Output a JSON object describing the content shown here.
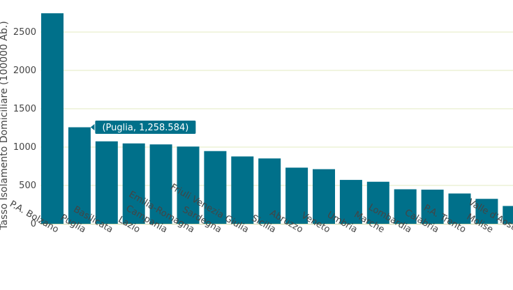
{
  "chart_data": {
    "type": "bar",
    "ylabel": "Tasso Isolamento Domiciliare (100000 Ab.)",
    "xlabel": "",
    "categories": [
      "P.A. Bolzano",
      "Puglia",
      "Basilicata",
      "Lazio",
      "Campania",
      "Emilia-Romagna",
      "Sardegna",
      "Friuli Venezia Giulia",
      "Sicilia",
      "Abruzzo",
      "Veneto",
      "Umbria",
      "Marche",
      "Lombardia",
      "Calabria",
      "P.A. Trento",
      "Molise",
      "Valle d'Aosta"
    ],
    "values": [
      2745,
      1258.584,
      1075,
      1048,
      1035,
      1007,
      948,
      878,
      852,
      732,
      712,
      572,
      548,
      450,
      445,
      395,
      325,
      232
    ],
    "ylim": [
      0,
      2800
    ],
    "yticks": [
      0,
      500,
      1000,
      1500,
      2000,
      2500
    ],
    "tick_labels": [
      "0",
      "500",
      "1000",
      "1500",
      "2000",
      "2500"
    ],
    "grid": true,
    "bar_color": "#00708a",
    "grid_color": "#e3ebc0",
    "tooltip": {
      "category": "Puglia",
      "label": "(Puglia, 1,258.584)"
    }
  }
}
